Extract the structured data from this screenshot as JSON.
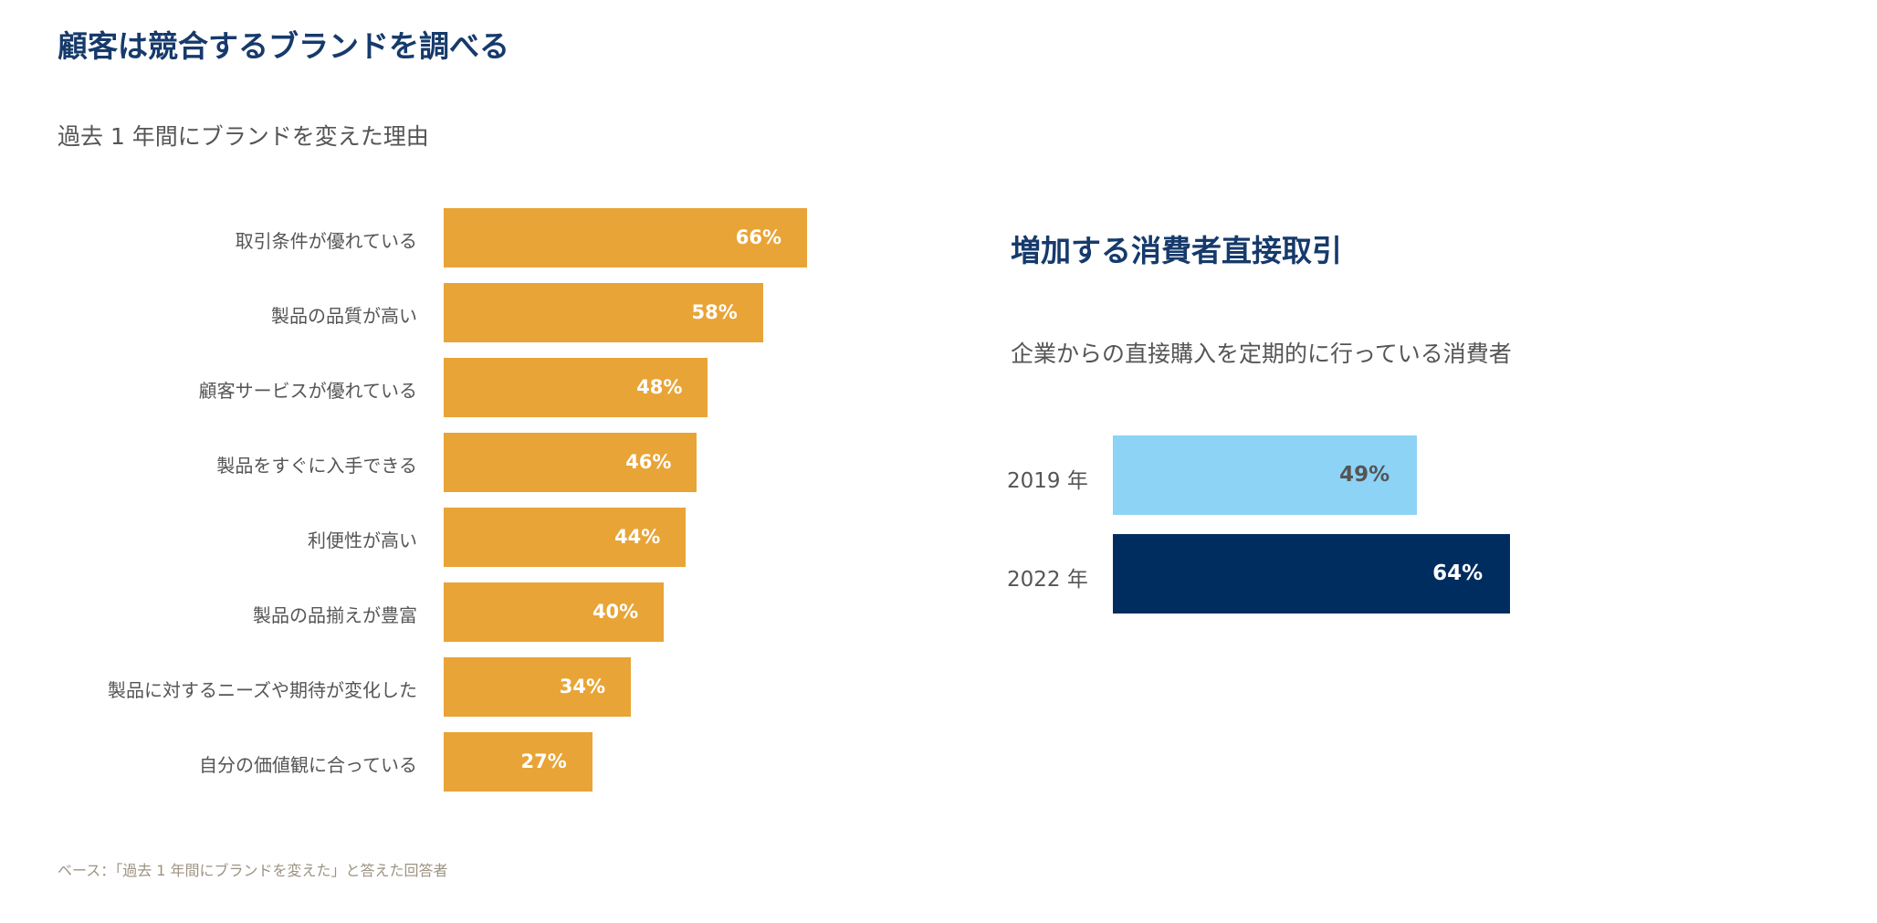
{
  "chart_data": [
    {
      "type": "bar",
      "orientation": "horizontal",
      "title": "顧客は競合するブランドを調べる",
      "subtitle": "過去 1 年間にブランドを変えた理由",
      "categories": [
        "取引条件が優れている",
        "製品の品質が高い",
        "顧客サービスが優れている",
        "製品をすぐに入手できる",
        "利便性が高い",
        "製品の品揃えが豊富",
        "製品に対するニーズや期待が変化した",
        "自分の価値観に合っている"
      ],
      "values": [
        66,
        58,
        48,
        46,
        44,
        40,
        34,
        27
      ],
      "data_labels": [
        "66%",
        "58%",
        "48%",
        "46%",
        "44%",
        "40%",
        "34%",
        "27%"
      ],
      "unit": "%",
      "color": "#E8A436",
      "grid": false,
      "footnote": "ベース：「過去 1 年間にブランドを変えた」と答えた回答者"
    },
    {
      "type": "bar",
      "orientation": "horizontal",
      "title": "増加する消費者直接取引",
      "subtitle": "企業からの直接購入を定期的に行っている消費者",
      "categories": [
        "2019 年",
        "2022 年"
      ],
      "values": [
        49,
        64
      ],
      "data_labels": [
        "49%",
        "64%"
      ],
      "unit": "%",
      "colors": [
        "#8DD3F6",
        "#002D5F"
      ],
      "label_colors": [
        "#555555",
        "#FFFFFF"
      ],
      "grid": false
    }
  ]
}
